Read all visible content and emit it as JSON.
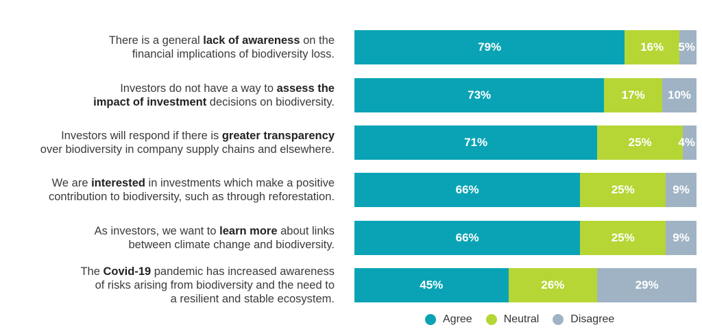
{
  "chart_data": {
    "type": "bar",
    "orientation": "horizontal",
    "stacked": true,
    "value_unit": "%",
    "xlim": [
      0,
      100
    ],
    "grid": false,
    "legend_position": "bottom",
    "categories": [
      [
        {
          "t": "There is a general ",
          "b": false
        },
        {
          "t": "lack of awareness",
          "b": true
        },
        {
          "t": " on the",
          "b": false
        },
        {
          "t": "\n",
          "b": false
        },
        {
          "t": "financial implications of biodiversity loss.",
          "b": false
        }
      ],
      [
        {
          "t": "Investors do not have a way to ",
          "b": false
        },
        {
          "t": "assess the",
          "b": true
        },
        {
          "t": "\n",
          "b": false
        },
        {
          "t": "impact of investment",
          "b": true
        },
        {
          "t": " decisions on biodiversity.",
          "b": false
        }
      ],
      [
        {
          "t": "Investors will respond if there is ",
          "b": false
        },
        {
          "t": "greater transparency",
          "b": true
        },
        {
          "t": "\n",
          "b": false
        },
        {
          "t": "over biodiversity in company supply chains and elsewhere.",
          "b": false
        }
      ],
      [
        {
          "t": "We are ",
          "b": false
        },
        {
          "t": "interested",
          "b": true
        },
        {
          "t": " in investments which make a positive",
          "b": false
        },
        {
          "t": "\n",
          "b": false
        },
        {
          "t": "contribution to biodiversity, such as through reforestation.",
          "b": false
        }
      ],
      [
        {
          "t": "As investors, we want to ",
          "b": false
        },
        {
          "t": "learn more",
          "b": true
        },
        {
          "t": " about links",
          "b": false
        },
        {
          "t": "\n",
          "b": false
        },
        {
          "t": "between climate change and biodiversity.",
          "b": false
        }
      ],
      [
        {
          "t": "The ",
          "b": false
        },
        {
          "t": "Covid-19",
          "b": true
        },
        {
          "t": " pandemic has increased awareness",
          "b": false
        },
        {
          "t": "\n",
          "b": false
        },
        {
          "t": "of risks arising from biodiversity and the need to",
          "b": false
        },
        {
          "t": "\n",
          "b": false
        },
        {
          "t": "a resilient and stable ecosystem.",
          "b": false
        }
      ]
    ],
    "series": [
      {
        "name": "Agree",
        "color": "#0aa3b5",
        "values": [
          79,
          73,
          71,
          66,
          66,
          45
        ]
      },
      {
        "name": "Neutral",
        "color": "#b6d636",
        "values": [
          16,
          17,
          25,
          25,
          25,
          26
        ]
      },
      {
        "name": "Disagree",
        "color": "#9fb3c4",
        "values": [
          5,
          10,
          4,
          9,
          9,
          29
        ]
      }
    ]
  }
}
